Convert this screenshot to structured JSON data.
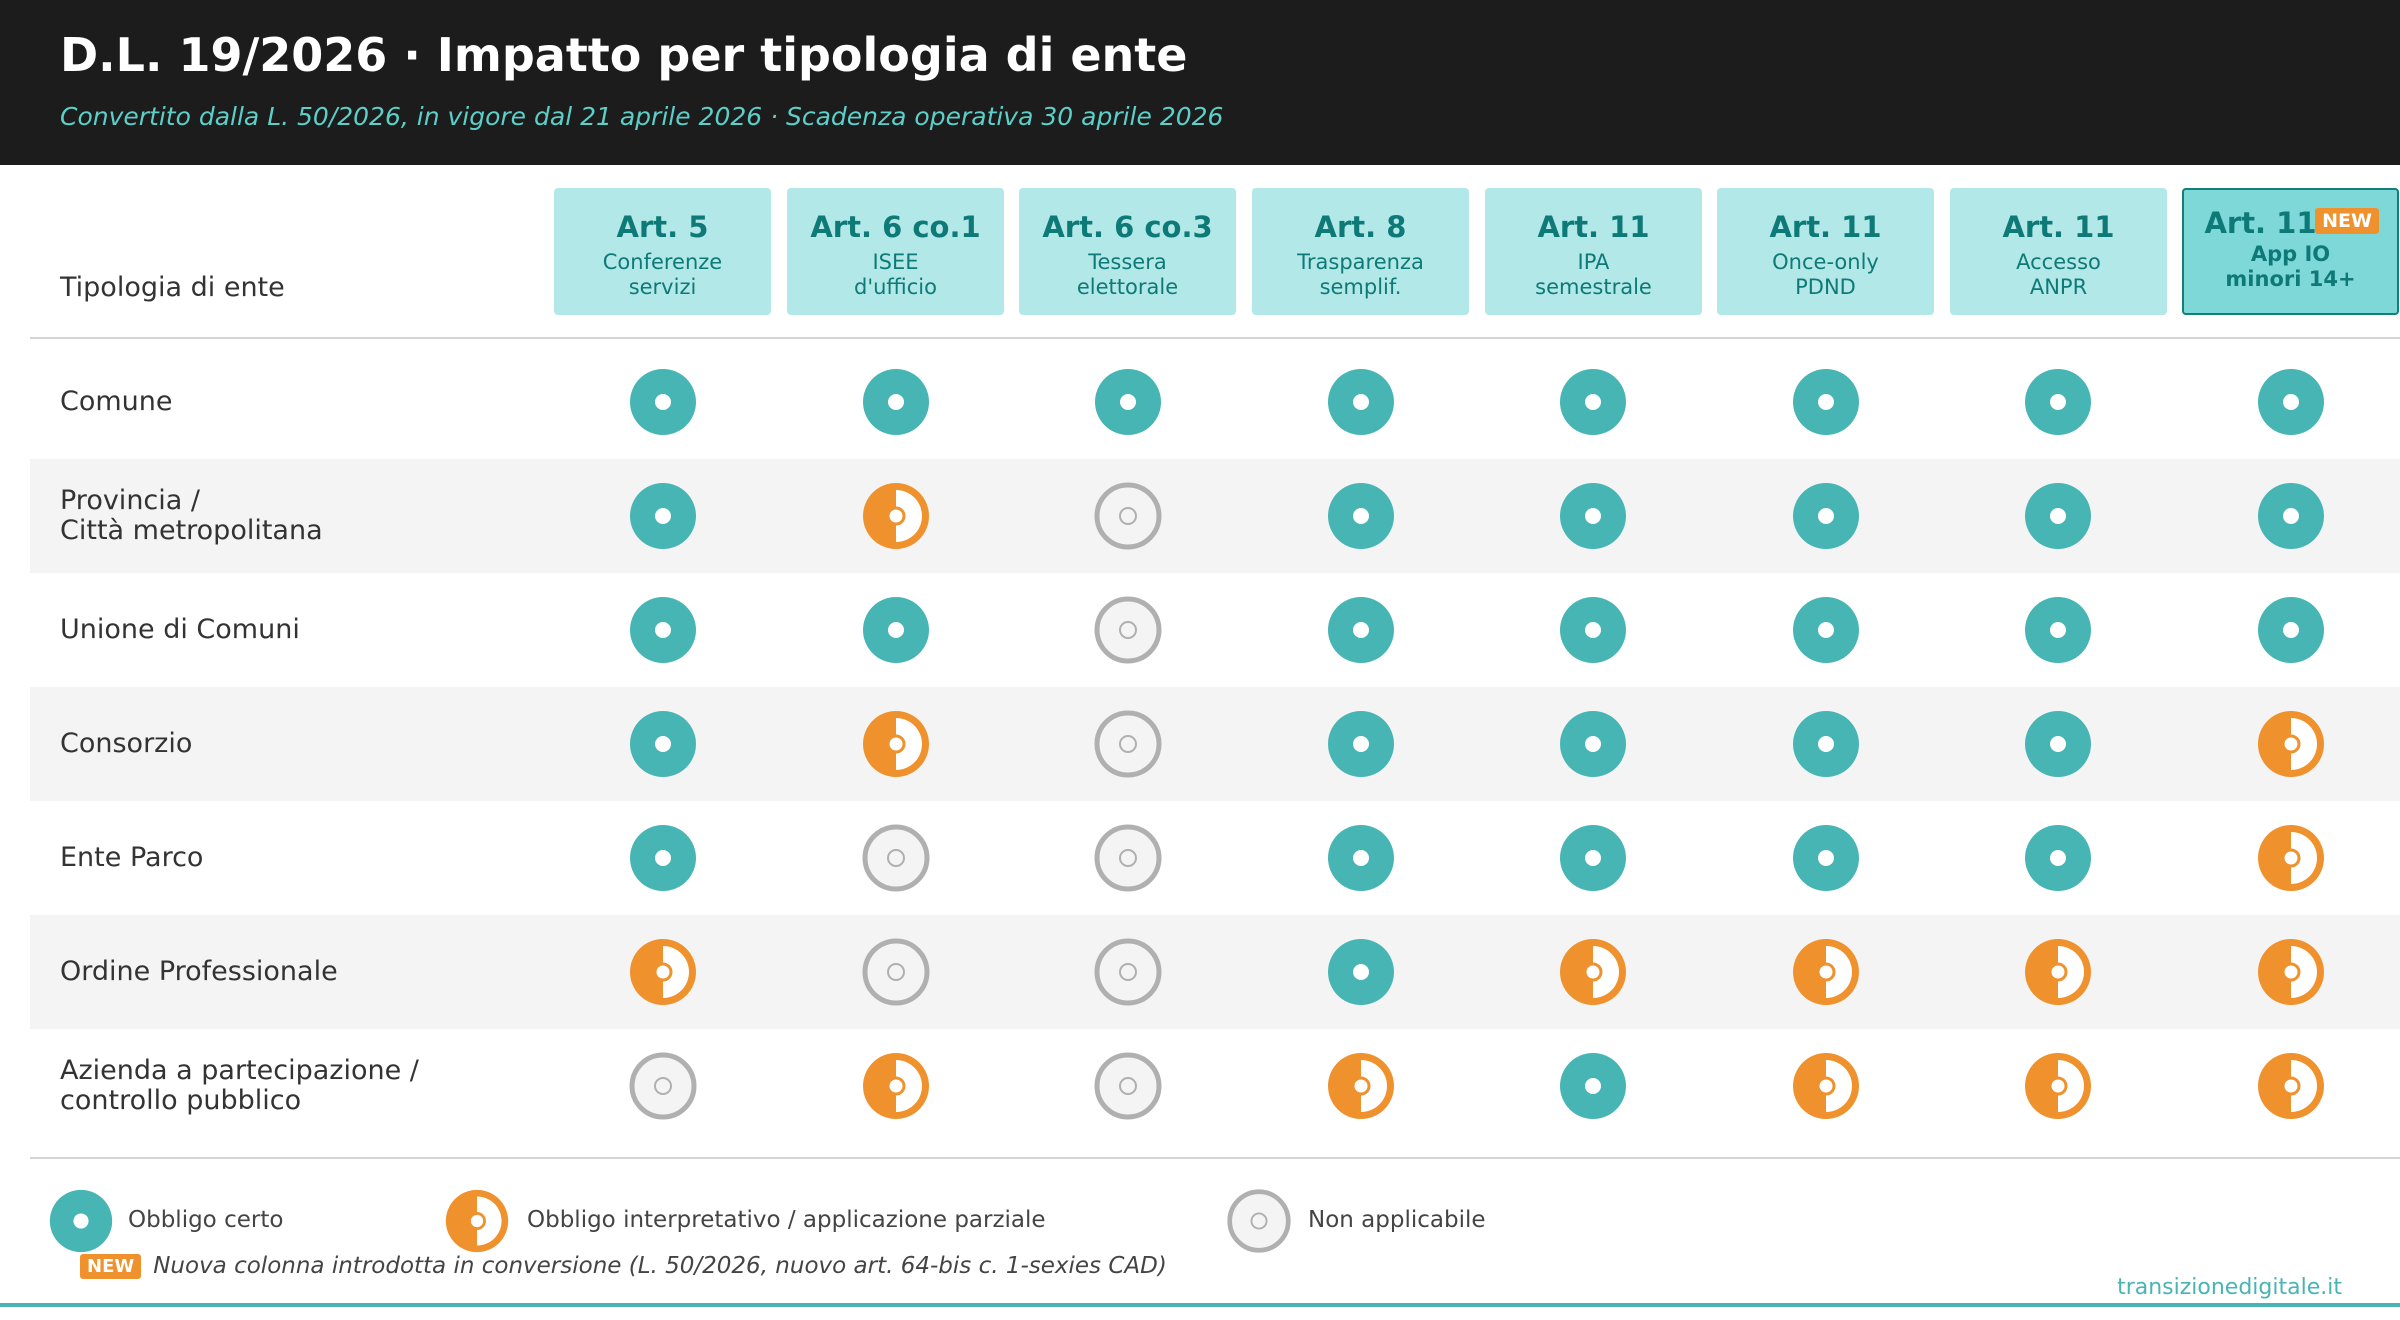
{
  "header": {
    "title": "D.L. 19/2026 · Impatto per tipologia di ente",
    "subtitle": "Convertito dalla L. 50/2026, in vigore dal 21 aprile 2026 · Scadenza operativa 30 aprile 2026"
  },
  "chart_data": {
    "type": "table",
    "row_header": "Tipologia di ente",
    "columns": [
      {
        "art": "Art. 5",
        "sub": "Conferenze\nservizi"
      },
      {
        "art": "Art. 6 co.1",
        "sub": "ISEE\nd'ufficio"
      },
      {
        "art": "Art. 6 co.3",
        "sub": "Tessera\nelettorale"
      },
      {
        "art": "Art. 8",
        "sub": "Trasparenza\nsemplif."
      },
      {
        "art": "Art. 11",
        "sub": "IPA\nsemestrale"
      },
      {
        "art": "Art. 11",
        "sub": "Once-only\nPDND"
      },
      {
        "art": "Art. 11",
        "sub": "Accesso\nANPR"
      },
      {
        "art": "Art. 11",
        "sub": "App IO\nminori 14+",
        "badge": "NEW",
        "highlight": true
      }
    ],
    "rows": [
      {
        "label": "Comune",
        "values": [
          "certo",
          "certo",
          "certo",
          "certo",
          "certo",
          "certo",
          "certo",
          "certo"
        ]
      },
      {
        "label": "Provincia /\nCittà metropolitana",
        "values": [
          "certo",
          "parziale",
          "na",
          "certo",
          "certo",
          "certo",
          "certo",
          "certo"
        ]
      },
      {
        "label": "Unione di Comuni",
        "values": [
          "certo",
          "certo",
          "na",
          "certo",
          "certo",
          "certo",
          "certo",
          "certo"
        ]
      },
      {
        "label": "Consorzio",
        "values": [
          "certo",
          "parziale",
          "na",
          "certo",
          "certo",
          "certo",
          "certo",
          "parziale"
        ]
      },
      {
        "label": "Ente Parco",
        "values": [
          "certo",
          "na",
          "na",
          "certo",
          "certo",
          "certo",
          "certo",
          "parziale"
        ]
      },
      {
        "label": "Ordine Professionale",
        "values": [
          "parziale",
          "na",
          "na",
          "certo",
          "parziale",
          "parziale",
          "parziale",
          "parziale"
        ]
      },
      {
        "label": "Azienda a partecipazione /\ncontrollo pubblico",
        "values": [
          "na",
          "parziale",
          "na",
          "parziale",
          "certo",
          "parziale",
          "parziale",
          "parziale"
        ]
      }
    ],
    "legend": [
      {
        "key": "certo",
        "label": "Obbligo certo"
      },
      {
        "key": "parziale",
        "label": "Obbligo interpretativo / applicazione parziale"
      },
      {
        "key": "na",
        "label": "Non applicabile"
      }
    ],
    "colors": {
      "certo": "#47b5b4",
      "parziale": "#ef922e",
      "na": "#b0b0b0"
    }
  },
  "footnote": {
    "badge": "NEW",
    "text": "Nuova colonna introdotta in conversione (L. 50/2026, nuovo art. 64-bis c. 1-sexies CAD)"
  },
  "source": "transizionedigitale.it"
}
